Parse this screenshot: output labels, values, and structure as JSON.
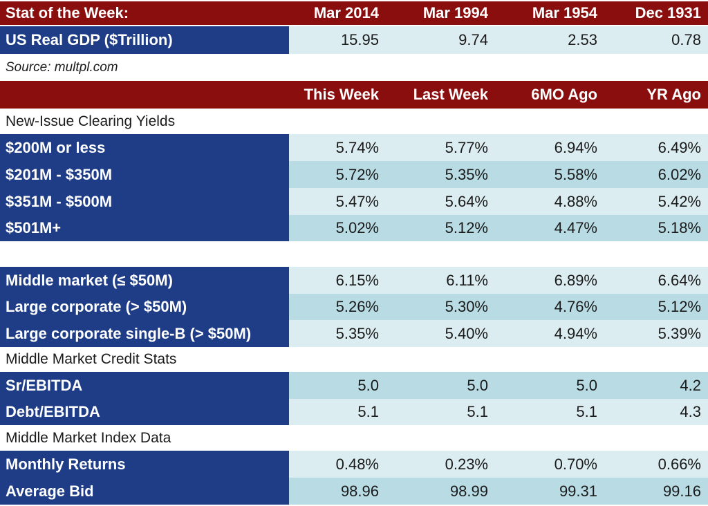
{
  "stat": {
    "header": [
      "Stat of the Week:",
      "Mar 2014",
      "Mar 1994",
      "Mar 1954",
      "Dec 1931"
    ],
    "row": {
      "label": "US Real GDP  ($Trillion)",
      "values": [
        "15.95",
        "9.74",
        "2.53",
        "0.78"
      ]
    },
    "source": "Source: multpl.com"
  },
  "main_header": [
    "",
    "This Week",
    "Last Week",
    "6MO Ago",
    "YR Ago"
  ],
  "sections": {
    "new_issue": "New-Issue Clearing Yields",
    "credit_stats": "Middle Market Credit Stats",
    "index_data": "Middle Market Index Data"
  },
  "rows": [
    {
      "label": "$200M or less",
      "values": [
        "5.74%",
        "5.77%",
        "6.94%",
        "6.49%"
      ]
    },
    {
      "label": "$201M - $350M",
      "values": [
        "5.72%",
        "5.35%",
        "5.58%",
        "6.02%"
      ]
    },
    {
      "label": "$351M - $500M",
      "values": [
        "5.47%",
        "5.64%",
        "4.88%",
        "5.42%"
      ]
    },
    {
      "label": "$501M+",
      "values": [
        "5.02%",
        "5.12%",
        "4.47%",
        "5.18%"
      ]
    },
    {
      "label": "Middle market (≤ $50M)",
      "values": [
        "6.15%",
        "6.11%",
        "6.89%",
        "6.64%"
      ]
    },
    {
      "label": "Large corporate (> $50M)",
      "values": [
        "5.26%",
        "5.30%",
        "4.76%",
        "5.12%"
      ]
    },
    {
      "label": "Large corporate single-B (> $50M)",
      "values": [
        "5.35%",
        "5.40%",
        "4.94%",
        "5.39%"
      ]
    },
    {
      "label": "Sr/EBITDA",
      "values": [
        "5.0",
        "5.0",
        "5.0",
        "4.2"
      ]
    },
    {
      "label": "Debt/EBITDA",
      "values": [
        "5.1",
        "5.1",
        "5.1",
        "4.3"
      ]
    },
    {
      "label": "Monthly Returns",
      "values": [
        "0.48%",
        "0.23%",
        "0.70%",
        "0.66%"
      ]
    },
    {
      "label": "Average Bid",
      "values": [
        "98.96",
        "98.99",
        "99.31",
        "99.16"
      ]
    }
  ]
}
